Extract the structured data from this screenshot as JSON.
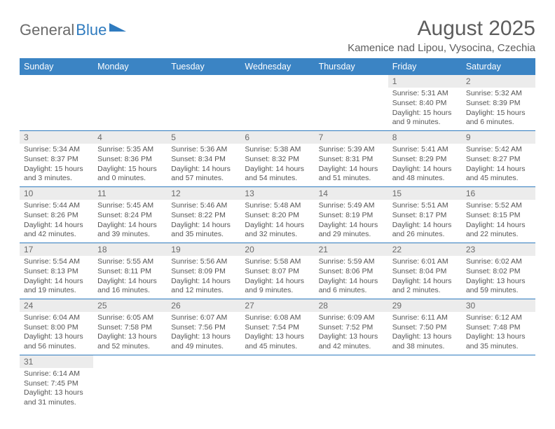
{
  "logo": {
    "text1": "General",
    "text2": "Blue"
  },
  "title": "August 2025",
  "location": "Kamenice nad Lipou, Vysocina, Czechia",
  "day_headers": [
    "Sunday",
    "Monday",
    "Tuesday",
    "Wednesday",
    "Thursday",
    "Friday",
    "Saturday"
  ],
  "colors": {
    "header_bg": "#3b84c4",
    "header_text": "#ffffff",
    "daynum_bg": "#ececec",
    "text_gray": "#5d5d5d",
    "rule": "#2f7bbf"
  },
  "weeks": [
    [
      null,
      null,
      null,
      null,
      null,
      {
        "n": "1",
        "sr": "5:31 AM",
        "ss": "8:40 PM",
        "dl": "15 hours and 9 minutes."
      },
      {
        "n": "2",
        "sr": "5:32 AM",
        "ss": "8:39 PM",
        "dl": "15 hours and 6 minutes."
      }
    ],
    [
      {
        "n": "3",
        "sr": "5:34 AM",
        "ss": "8:37 PM",
        "dl": "15 hours and 3 minutes."
      },
      {
        "n": "4",
        "sr": "5:35 AM",
        "ss": "8:36 PM",
        "dl": "15 hours and 0 minutes."
      },
      {
        "n": "5",
        "sr": "5:36 AM",
        "ss": "8:34 PM",
        "dl": "14 hours and 57 minutes."
      },
      {
        "n": "6",
        "sr": "5:38 AM",
        "ss": "8:32 PM",
        "dl": "14 hours and 54 minutes."
      },
      {
        "n": "7",
        "sr": "5:39 AM",
        "ss": "8:31 PM",
        "dl": "14 hours and 51 minutes."
      },
      {
        "n": "8",
        "sr": "5:41 AM",
        "ss": "8:29 PM",
        "dl": "14 hours and 48 minutes."
      },
      {
        "n": "9",
        "sr": "5:42 AM",
        "ss": "8:27 PM",
        "dl": "14 hours and 45 minutes."
      }
    ],
    [
      {
        "n": "10",
        "sr": "5:44 AM",
        "ss": "8:26 PM",
        "dl": "14 hours and 42 minutes."
      },
      {
        "n": "11",
        "sr": "5:45 AM",
        "ss": "8:24 PM",
        "dl": "14 hours and 39 minutes."
      },
      {
        "n": "12",
        "sr": "5:46 AM",
        "ss": "8:22 PM",
        "dl": "14 hours and 35 minutes."
      },
      {
        "n": "13",
        "sr": "5:48 AM",
        "ss": "8:20 PM",
        "dl": "14 hours and 32 minutes."
      },
      {
        "n": "14",
        "sr": "5:49 AM",
        "ss": "8:19 PM",
        "dl": "14 hours and 29 minutes."
      },
      {
        "n": "15",
        "sr": "5:51 AM",
        "ss": "8:17 PM",
        "dl": "14 hours and 26 minutes."
      },
      {
        "n": "16",
        "sr": "5:52 AM",
        "ss": "8:15 PM",
        "dl": "14 hours and 22 minutes."
      }
    ],
    [
      {
        "n": "17",
        "sr": "5:54 AM",
        "ss": "8:13 PM",
        "dl": "14 hours and 19 minutes."
      },
      {
        "n": "18",
        "sr": "5:55 AM",
        "ss": "8:11 PM",
        "dl": "14 hours and 16 minutes."
      },
      {
        "n": "19",
        "sr": "5:56 AM",
        "ss": "8:09 PM",
        "dl": "14 hours and 12 minutes."
      },
      {
        "n": "20",
        "sr": "5:58 AM",
        "ss": "8:07 PM",
        "dl": "14 hours and 9 minutes."
      },
      {
        "n": "21",
        "sr": "5:59 AM",
        "ss": "8:06 PM",
        "dl": "14 hours and 6 minutes."
      },
      {
        "n": "22",
        "sr": "6:01 AM",
        "ss": "8:04 PM",
        "dl": "14 hours and 2 minutes."
      },
      {
        "n": "23",
        "sr": "6:02 AM",
        "ss": "8:02 PM",
        "dl": "13 hours and 59 minutes."
      }
    ],
    [
      {
        "n": "24",
        "sr": "6:04 AM",
        "ss": "8:00 PM",
        "dl": "13 hours and 56 minutes."
      },
      {
        "n": "25",
        "sr": "6:05 AM",
        "ss": "7:58 PM",
        "dl": "13 hours and 52 minutes."
      },
      {
        "n": "26",
        "sr": "6:07 AM",
        "ss": "7:56 PM",
        "dl": "13 hours and 49 minutes."
      },
      {
        "n": "27",
        "sr": "6:08 AM",
        "ss": "7:54 PM",
        "dl": "13 hours and 45 minutes."
      },
      {
        "n": "28",
        "sr": "6:09 AM",
        "ss": "7:52 PM",
        "dl": "13 hours and 42 minutes."
      },
      {
        "n": "29",
        "sr": "6:11 AM",
        "ss": "7:50 PM",
        "dl": "13 hours and 38 minutes."
      },
      {
        "n": "30",
        "sr": "6:12 AM",
        "ss": "7:48 PM",
        "dl": "13 hours and 35 minutes."
      }
    ],
    [
      {
        "n": "31",
        "sr": "6:14 AM",
        "ss": "7:45 PM",
        "dl": "13 hours and 31 minutes."
      },
      null,
      null,
      null,
      null,
      null,
      null
    ]
  ],
  "labels": {
    "sunrise": "Sunrise:",
    "sunset": "Sunset:",
    "daylight": "Daylight:"
  }
}
